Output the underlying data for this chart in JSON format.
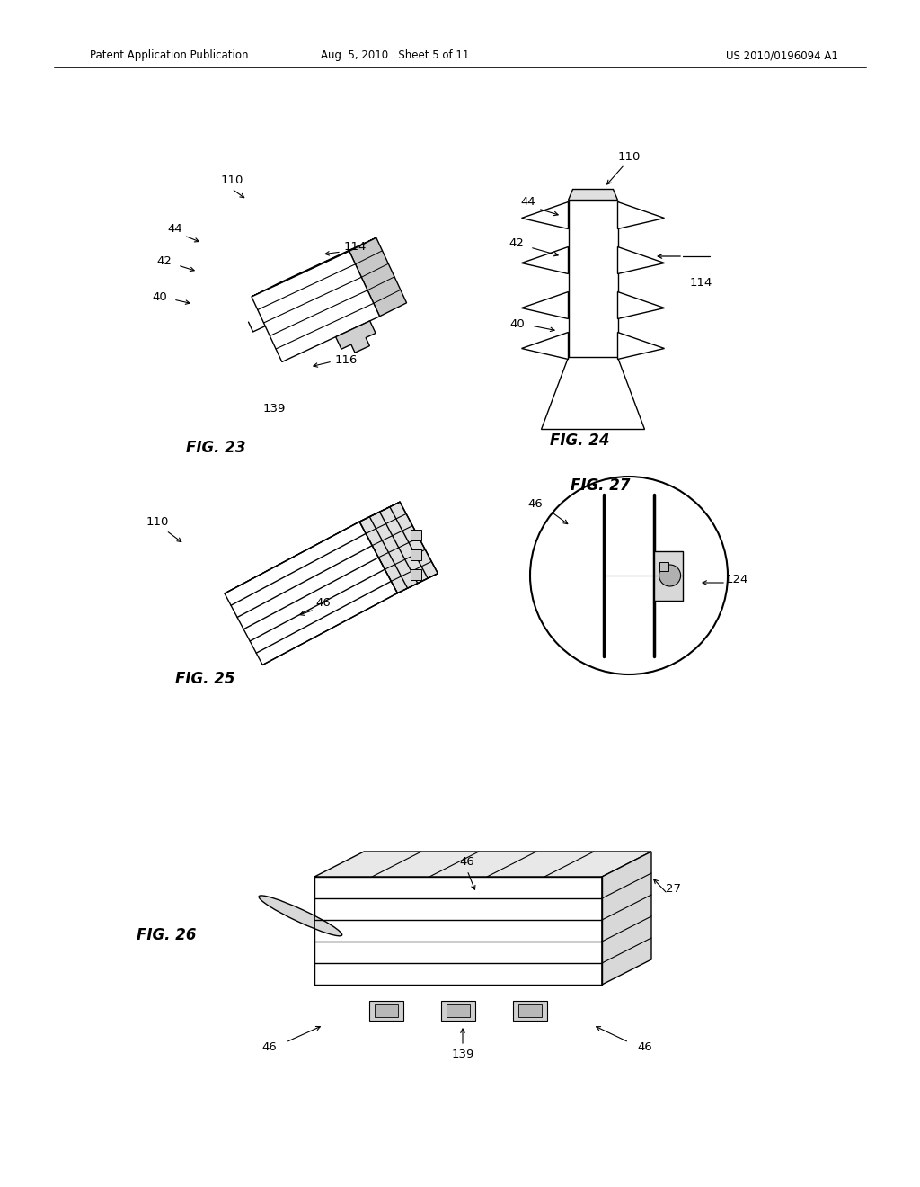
{
  "background_color": "#ffffff",
  "page_width": 10.24,
  "page_height": 13.2,
  "header_left": "Patent Application Publication",
  "header_mid": "Aug. 5, 2010   Sheet 5 of 11",
  "header_right": "US 2010/0196094 A1",
  "lc": "#000000",
  "lw": 1.0,
  "fig_label_fontsize": 12,
  "callout_fontsize": 9.5,
  "header_fontsize": 8.5
}
